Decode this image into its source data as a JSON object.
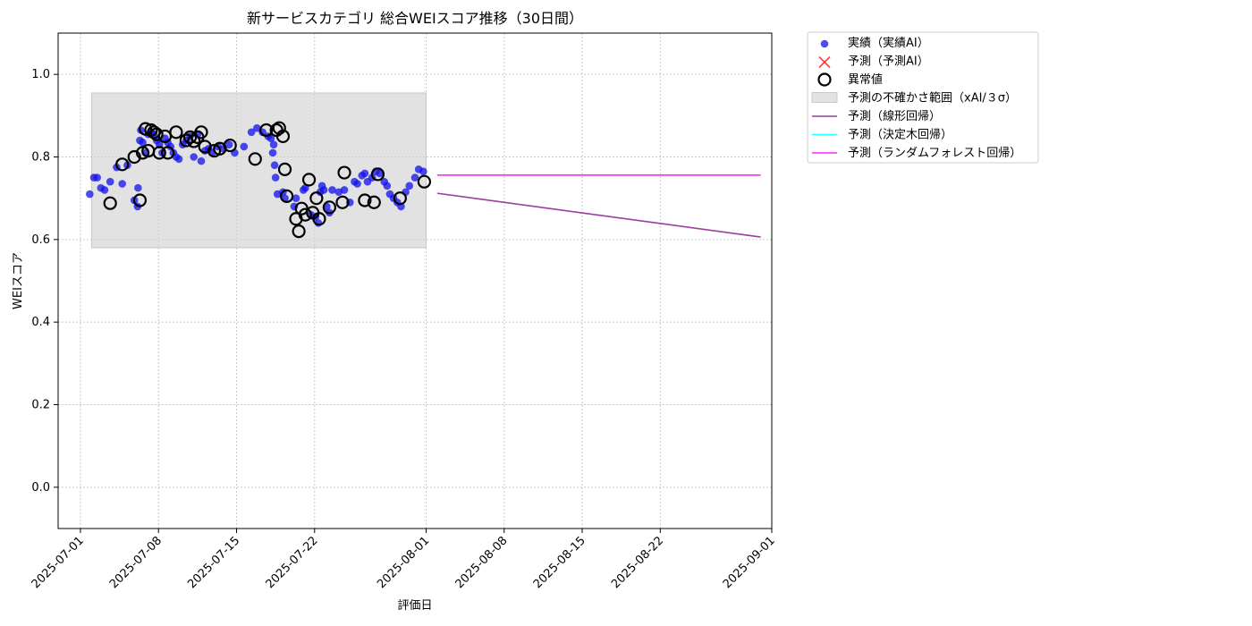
{
  "colors": {
    "actual": "#1010ee",
    "forecast_x": "#ee2222",
    "anomaly": "#000000",
    "band": "#d3d3d3",
    "linear": "#8b1a8b",
    "tree": "#00ffff",
    "forest": "#ff00ff",
    "grid": "#c8c8c8"
  },
  "chart_data": {
    "type": "scatter",
    "title": "新サービスカテゴリ 総合WEIスコア推移（30日間）",
    "xlabel": "評価日",
    "ylabel": "WEIスコア",
    "xlim": [
      "2025-06-29",
      "2025-09-01"
    ],
    "ylim": [
      -0.1,
      1.1
    ],
    "x_ticks": [
      "2025-07-01",
      "2025-07-08",
      "2025-07-15",
      "2025-07-22",
      "2025-08-01",
      "2025-08-08",
      "2025-08-15",
      "2025-08-22",
      "2025-09-01"
    ],
    "y_ticks": [
      0.0,
      0.2,
      0.4,
      0.6,
      0.8,
      1.0
    ],
    "y_tick_labels": [
      "0.0",
      "0.2",
      "0.4",
      "0.6",
      "0.8",
      "1.0"
    ],
    "grid": true,
    "legend_position": "outside-top-right",
    "legend": [
      {
        "label": "実績（実績AI）",
        "kind": "dot",
        "color": "#1010ee"
      },
      {
        "label": "予測（予測AI）",
        "kind": "x",
        "color": "#ee2222"
      },
      {
        "label": "異常値",
        "kind": "ring",
        "color": "#000000"
      },
      {
        "label": "予測の不確かさ範囲（xAI/３σ）",
        "kind": "band",
        "color": "#d3d3d3"
      },
      {
        "label": "予測（線形回帰）",
        "kind": "line",
        "color": "#8b1a8b"
      },
      {
        "label": "予測（決定木回帰）",
        "kind": "line",
        "color": "#00ffff"
      },
      {
        "label": "予測（ランダムフォレスト回帰）",
        "kind": "line",
        "color": "#ff00ff"
      }
    ],
    "uncertainty_band": {
      "x": [
        "2025-07-02",
        "2025-08-01"
      ],
      "y": [
        0.58,
        0.955
      ]
    },
    "series": [
      {
        "name": "実績（実績AI）",
        "type": "scatter",
        "points": [
          [
            "2025-07-01 20:00",
            0.71
          ],
          [
            "2025-07-02 05:00",
            0.75
          ],
          [
            "2025-07-02 12:00",
            0.75
          ],
          [
            "2025-07-02 20:00",
            0.725
          ],
          [
            "2025-07-03 04:00",
            0.72
          ],
          [
            "2025-07-03 16:00",
            0.74
          ],
          [
            "2025-07-04 06:00",
            0.775
          ],
          [
            "2025-07-04 18:00",
            0.735
          ],
          [
            "2025-07-05 05:00",
            0.78
          ],
          [
            "2025-07-05 20:00",
            0.695
          ],
          [
            "2025-07-06 03:00",
            0.68
          ],
          [
            "2025-07-06 04:00",
            0.725
          ],
          [
            "2025-07-06 08:00",
            0.84
          ],
          [
            "2025-07-06 10:00",
            0.865
          ],
          [
            "2025-07-06 14:00",
            0.835
          ],
          [
            "2025-07-06 20:00",
            0.81
          ],
          [
            "2025-07-07 02:00",
            0.855
          ],
          [
            "2025-07-07 08:00",
            0.86
          ],
          [
            "2025-07-07 14:00",
            0.855
          ],
          [
            "2025-07-07 20:00",
            0.84
          ],
          [
            "2025-07-08 02:00",
            0.83
          ],
          [
            "2025-07-08 08:00",
            0.81
          ],
          [
            "2025-07-08 14:00",
            0.845
          ],
          [
            "2025-07-08 20:00",
            0.835
          ],
          [
            "2025-07-09 02:00",
            0.825
          ],
          [
            "2025-07-09 08:00",
            0.81
          ],
          [
            "2025-07-09 14:00",
            0.8
          ],
          [
            "2025-07-09 20:00",
            0.795
          ],
          [
            "2025-07-10 04:00",
            0.83
          ],
          [
            "2025-07-10 12:00",
            0.84
          ],
          [
            "2025-07-10 20:00",
            0.85
          ],
          [
            "2025-07-11 04:00",
            0.8
          ],
          [
            "2025-07-11 12:00",
            0.855
          ],
          [
            "2025-07-11 20:00",
            0.79
          ],
          [
            "2025-07-12 04:00",
            0.815
          ],
          [
            "2025-07-12 12:00",
            0.82
          ],
          [
            "2025-07-12 20:00",
            0.81
          ],
          [
            "2025-07-13 08:00",
            0.825
          ],
          [
            "2025-07-13 20:00",
            0.82
          ],
          [
            "2025-07-14 08:00",
            0.83
          ],
          [
            "2025-07-14 20:00",
            0.81
          ],
          [
            "2025-07-15 16:00",
            0.825
          ],
          [
            "2025-07-16 08:00",
            0.86
          ],
          [
            "2025-07-16 20:00",
            0.87
          ],
          [
            "2025-07-17 08:00",
            0.86
          ],
          [
            "2025-07-17 20:00",
            0.85
          ],
          [
            "2025-07-18 02:00",
            0.845
          ],
          [
            "2025-07-18 06:00",
            0.81
          ],
          [
            "2025-07-18 08:00",
            0.83
          ],
          [
            "2025-07-18 10:00",
            0.78
          ],
          [
            "2025-07-18 12:00",
            0.75
          ],
          [
            "2025-07-18 16:00",
            0.71
          ],
          [
            "2025-07-19 04:00",
            0.715
          ],
          [
            "2025-07-19 08:00",
            0.7
          ],
          [
            "2025-07-20 04:00",
            0.68
          ],
          [
            "2025-07-20 08:00",
            0.7
          ],
          [
            "2025-07-21 00:00",
            0.72
          ],
          [
            "2025-07-21 04:00",
            0.725
          ],
          [
            "2025-07-21 16:00",
            0.66
          ],
          [
            "2025-07-22 02:00",
            0.655
          ],
          [
            "2025-07-22 08:00",
            0.64
          ],
          [
            "2025-07-22 12:00",
            0.715
          ],
          [
            "2025-07-22 16:00",
            0.73
          ],
          [
            "2025-07-22 20:00",
            0.72
          ],
          [
            "2025-07-23 02:00",
            0.68
          ],
          [
            "2025-07-23 08:00",
            0.665
          ],
          [
            "2025-07-23 14:00",
            0.72
          ],
          [
            "2025-07-24 04:00",
            0.715
          ],
          [
            "2025-07-24 16:00",
            0.72
          ],
          [
            "2025-07-25 04:00",
            0.69
          ],
          [
            "2025-07-25 14:00",
            0.74
          ],
          [
            "2025-07-25 20:00",
            0.735
          ],
          [
            "2025-07-26 06:00",
            0.755
          ],
          [
            "2025-07-26 12:00",
            0.76
          ],
          [
            "2025-07-26 18:00",
            0.74
          ],
          [
            "2025-07-27 04:00",
            0.75
          ],
          [
            "2025-07-27 12:00",
            0.765
          ],
          [
            "2025-07-27 20:00",
            0.76
          ],
          [
            "2025-07-28 06:00",
            0.74
          ],
          [
            "2025-07-28 12:00",
            0.73
          ],
          [
            "2025-07-28 18:00",
            0.71
          ],
          [
            "2025-07-29 02:00",
            0.7
          ],
          [
            "2025-07-29 10:00",
            0.69
          ],
          [
            "2025-07-29 18:00",
            0.68
          ],
          [
            "2025-07-30 04:00",
            0.715
          ],
          [
            "2025-07-30 12:00",
            0.73
          ],
          [
            "2025-07-31 00:00",
            0.75
          ],
          [
            "2025-07-31 08:00",
            0.77
          ],
          [
            "2025-07-31 18:00",
            0.765
          ]
        ]
      },
      {
        "name": "異常値",
        "type": "scatter",
        "points": [
          [
            "2025-07-03 16:00",
            0.688
          ],
          [
            "2025-07-04 18:00",
            0.782
          ],
          [
            "2025-07-05 20:00",
            0.8
          ],
          [
            "2025-07-06 08:00",
            0.695
          ],
          [
            "2025-07-06 14:00",
            0.81
          ],
          [
            "2025-07-06 20:00",
            0.868
          ],
          [
            "2025-07-07 02:00",
            0.815
          ],
          [
            "2025-07-07 08:00",
            0.865
          ],
          [
            "2025-07-07 14:00",
            0.86
          ],
          [
            "2025-07-07 20:00",
            0.855
          ],
          [
            "2025-07-08 02:00",
            0.81
          ],
          [
            "2025-07-08 14:00",
            0.85
          ],
          [
            "2025-07-08 20:00",
            0.81
          ],
          [
            "2025-07-09 14:00",
            0.86
          ],
          [
            "2025-07-10 12:00",
            0.84
          ],
          [
            "2025-07-10 20:00",
            0.848
          ],
          [
            "2025-07-11 04:00",
            0.838
          ],
          [
            "2025-07-11 12:00",
            0.848
          ],
          [
            "2025-07-11 20:00",
            0.86
          ],
          [
            "2025-07-12 04:00",
            0.825
          ],
          [
            "2025-07-13 00:00",
            0.815
          ],
          [
            "2025-07-13 12:00",
            0.82
          ],
          [
            "2025-07-14 10:00",
            0.828
          ],
          [
            "2025-07-16 16:00",
            0.795
          ],
          [
            "2025-07-17 16:00",
            0.865
          ],
          [
            "2025-07-18 14:00",
            0.865
          ],
          [
            "2025-07-18 20:00",
            0.87
          ],
          [
            "2025-07-19 04:00",
            0.85
          ],
          [
            "2025-07-19 08:00",
            0.77
          ],
          [
            "2025-07-19 12:00",
            0.705
          ],
          [
            "2025-07-20 08:00",
            0.65
          ],
          [
            "2025-07-20 14:00",
            0.62
          ],
          [
            "2025-07-20 20:00",
            0.675
          ],
          [
            "2025-07-21 04:00",
            0.66
          ],
          [
            "2025-07-21 12:00",
            0.745
          ],
          [
            "2025-07-21 20:00",
            0.665
          ],
          [
            "2025-07-22 04:00",
            0.7
          ],
          [
            "2025-07-22 10:00",
            0.65
          ],
          [
            "2025-07-23 08:00",
            0.678
          ],
          [
            "2025-07-24 12:00",
            0.69
          ],
          [
            "2025-07-24 16:00",
            0.762
          ],
          [
            "2025-07-26 12:00",
            0.695
          ],
          [
            "2025-07-27 08:00",
            0.69
          ],
          [
            "2025-07-27 16:00",
            0.758
          ],
          [
            "2025-07-29 16:00",
            0.7
          ],
          [
            "2025-07-31 20:00",
            0.74
          ]
        ]
      },
      {
        "name": "予測（線形回帰）",
        "type": "line",
        "points": [
          [
            "2025-08-02",
            0.712
          ],
          [
            "2025-08-31",
            0.606
          ]
        ]
      },
      {
        "name": "予測（ランダムフォレスト回帰）",
        "type": "line",
        "points": [
          [
            "2025-08-02",
            0.756
          ],
          [
            "2025-08-31",
            0.756
          ]
        ]
      }
    ]
  }
}
